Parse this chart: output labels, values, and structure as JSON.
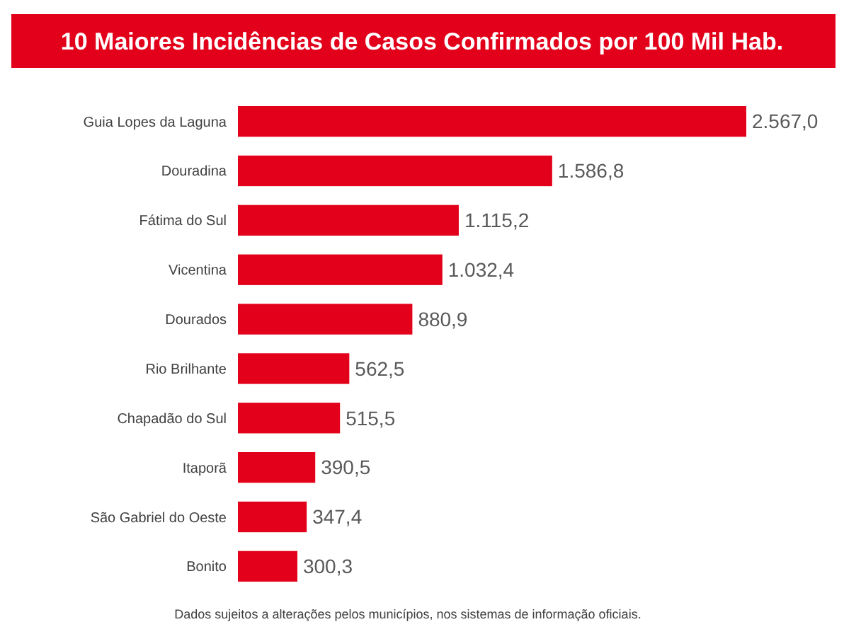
{
  "chart_data": {
    "type": "bar",
    "orientation": "horizontal",
    "title": "10 Maiores Incidências de Casos Confirmados por 100 Mil Hab.",
    "categories": [
      "Guia Lopes da Laguna",
      "Douradina",
      "Fátima do Sul",
      "Vicentina",
      "Dourados",
      "Rio Brilhante",
      "Chapadão do Sul",
      "Itaporã",
      "São Gabriel do Oeste",
      "Bonito"
    ],
    "values": [
      2567.0,
      1586.8,
      1115.2,
      1032.4,
      880.9,
      562.5,
      515.5,
      390.5,
      347.4,
      300.3
    ],
    "value_labels": [
      "2.567,0",
      "1.586,8",
      "1.115,2",
      "1.032,4",
      "880,9",
      "562,5",
      "515,5",
      "390,5",
      "347,4",
      "300,3"
    ],
    "color": "#e2001a",
    "annotations": [
      "Dados sujeitos a alterações pelos municípios, nos sistemas de informação oficiais."
    ]
  }
}
